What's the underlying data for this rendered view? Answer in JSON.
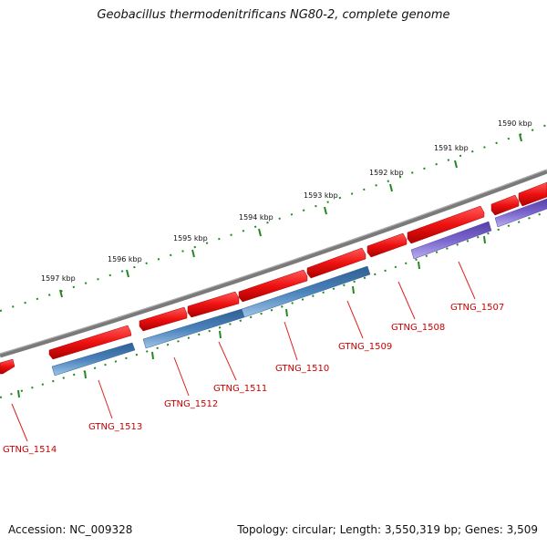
{
  "title": "Geobacillus thermodenitrificans NG80-2, complete genome",
  "footer": {
    "accession": "Accession: NC_009328",
    "summary": "Topology: circular; Length: 3,550,319 bp; Genes: 3,509"
  },
  "scale_labels": [
    "1590 kbp",
    "1591 kbp",
    "1592 kbp",
    "1593 kbp",
    "1594 kbp",
    "1595 kbp",
    "1596 kbp",
    "1597 kbp"
  ],
  "gene_labels": [
    "GTNG_1507",
    "GTNG_1508",
    "GTNG_1509",
    "GTNG_1510",
    "GTNG_1511",
    "GTNG_1512",
    "GTNG_1513",
    "GTNG_1514"
  ],
  "colors": {
    "backbone": "#7a7a7a",
    "forward_gene": "#ee1111",
    "reverse_gene": "#4a82bb",
    "reverse_gene_alt": "#7a66cc",
    "tick": "#228822",
    "label_line": "#dd2222"
  }
}
